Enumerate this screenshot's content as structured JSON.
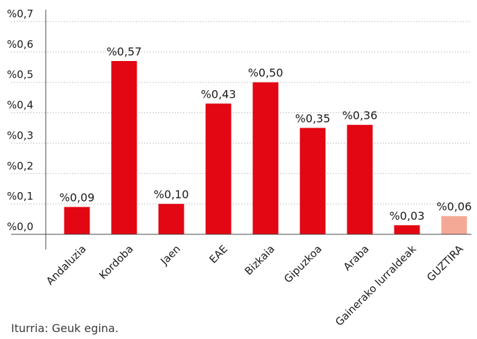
{
  "chart_data": {
    "type": "bar",
    "categories": [
      "Andaluzia",
      "Kordoba",
      "Jaen",
      "EAE",
      "Bizkaia",
      "Gipuzkoa",
      "Araba",
      "Gainerako lurraldeak",
      "GUZTIRA"
    ],
    "values": [
      0.09,
      0.57,
      0.1,
      0.43,
      0.5,
      0.35,
      0.36,
      0.03,
      0.06
    ],
    "value_labels": [
      "%0,09",
      "%0,57",
      "%0,10",
      "%0,43",
      "%0,50",
      "%0,35",
      "%0,36",
      "%0,03",
      "%0,06"
    ],
    "ylim": [
      0,
      0.7
    ],
    "ytick_values": [
      0,
      0.1,
      0.2,
      0.3,
      0.4,
      0.5,
      0.6,
      0.7
    ],
    "ytick_labels": [
      "%0,0",
      "%0,1",
      "%0,2",
      "%0,3",
      "%0,4",
      "%0,5",
      "%0,6",
      "%0,7"
    ],
    "grid": "horizontal dotted",
    "title": "",
    "xlabel": "",
    "ylabel": "",
    "colors": {
      "bar": "#e30613",
      "highlight_bar": "#f4a996",
      "grid": "#b5b5b5",
      "axis": "#444444"
    },
    "highlight_category": "GUZTIRA"
  },
  "source": "Iturria: Geuk egina."
}
